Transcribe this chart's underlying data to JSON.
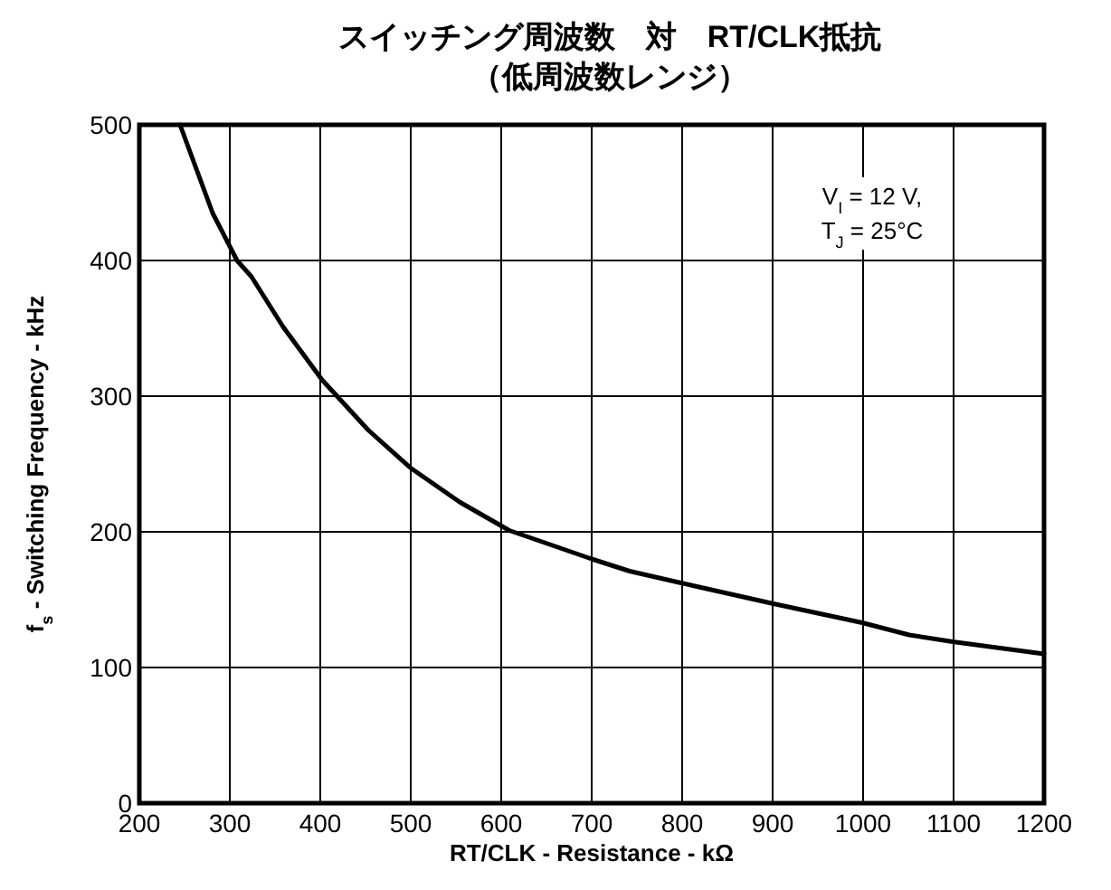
{
  "chart_data": {
    "type": "line",
    "title": "スイッチング周波数　対　RT/CLK抵抗",
    "subtitle": "（低周波数レンジ）",
    "xlabel": "RT/CLK - Resistance - kΩ",
    "ylabel": "f$_{s}$ - Switching Frequency - kHz",
    "annotations": [
      "V$_{I}$ = 12 V,",
      "T$_{J}$ = 25°C"
    ],
    "x": [
      245,
      281,
      308,
      324,
      359,
      402,
      453,
      500,
      554,
      609,
      700,
      742,
      801,
      901,
      999,
      1051,
      1099,
      1200
    ],
    "series": [
      {
        "color": "#000000",
        "values": [
          500,
          435,
          400,
          388,
          351,
          312,
          275,
          247,
          222,
          201,
          180,
          171,
          162,
          147,
          133,
          124,
          119,
          110
        ]
      }
    ],
    "xlim": [
      200,
      1200
    ],
    "ylim": [
      0,
      500
    ],
    "xticks": [
      200,
      300,
      400,
      500,
      600,
      700,
      800,
      900,
      1000,
      1100,
      1200
    ],
    "yticks": [
      0,
      100,
      200,
      300,
      400,
      500
    ],
    "grid": true,
    "line_style": "solid"
  }
}
